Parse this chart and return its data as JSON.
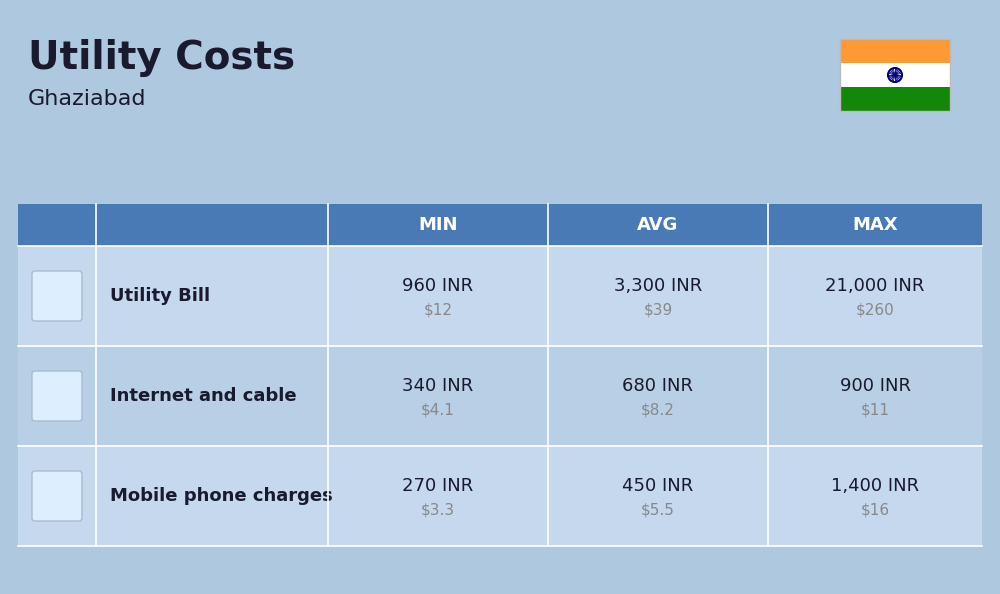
{
  "title": "Utility Costs",
  "subtitle": "Ghaziabad",
  "background_color": "#aec8e0",
  "header_color": "#4a7ab5",
  "header_text_color": "#ffffff",
  "row_colors": [
    "#c5d8ed",
    "#b8cfe6",
    "#c5d8ed"
  ],
  "rows": [
    {
      "label": "Utility Bill",
      "min_inr": "960 INR",
      "min_usd": "$12",
      "avg_inr": "3,300 INR",
      "avg_usd": "$39",
      "max_inr": "21,000 INR",
      "max_usd": "$260"
    },
    {
      "label": "Internet and cable",
      "min_inr": "340 INR",
      "min_usd": "$4.1",
      "avg_inr": "680 INR",
      "avg_usd": "$8.2",
      "max_inr": "900 INR",
      "max_usd": "$11"
    },
    {
      "label": "Mobile phone charges",
      "min_inr": "270 INR",
      "min_usd": "$3.3",
      "avg_inr": "450 INR",
      "avg_usd": "$5.5",
      "max_inr": "1,400 INR",
      "max_usd": "$16"
    }
  ],
  "flag_colors": [
    "#ff9933",
    "#ffffff",
    "#138808"
  ],
  "flag_emblem_color": "#000080",
  "text_color_dark": "#1a1a2e",
  "text_color_usd": "#888888",
  "label_font_size": 13,
  "value_font_size": 13,
  "usd_font_size": 11,
  "header_font_size": 13
}
